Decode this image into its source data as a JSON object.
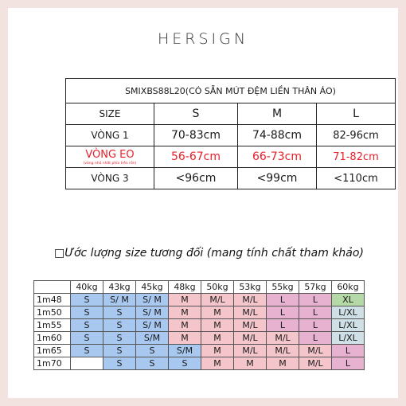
{
  "brand": "HERSIGN",
  "size_table": {
    "title": "SMIXBS88L20(CÓ SẴN MÚT ĐỆM LIỀN THÂN ÁO)",
    "header": [
      "SIZE",
      "S",
      "M",
      "L"
    ],
    "rows": [
      {
        "label": "VÒNG 1",
        "values": [
          "70-83cm",
          "74-88cm",
          "82-96cm"
        ],
        "color": "#1a1a1a"
      },
      {
        "label": "VÒNG EO",
        "note": "(vòng nhỏ nhất phía trên rốn)",
        "values": [
          "56-67cm",
          "66-73cm",
          "71-82cm"
        ],
        "color": "#e8202a"
      },
      {
        "label": "VÒNG 3",
        "values": [
          "<96cm",
          "<99cm",
          "<110cm"
        ],
        "color": "#1a1a1a"
      }
    ]
  },
  "subtitle": "□Ước lượng size tương đối (mang tính chất tham khảo)",
  "weight_table": {
    "weights": [
      "40kg",
      "43kg",
      "45kg",
      "48kg",
      "50kg",
      "53kg",
      "55kg",
      "57kg",
      "60kg"
    ],
    "rows": [
      {
        "height": "1m48",
        "cells": [
          "S",
          "S/ M",
          "S/ M",
          "M",
          "M/L",
          "M/L",
          "L",
          "L",
          "XL"
        ],
        "colors": [
          "blue",
          "blue",
          "blue",
          "pink",
          "pink",
          "pink",
          "mauve",
          "mauve",
          "green"
        ]
      },
      {
        "height": "1m50",
        "cells": [
          "S",
          "S",
          "S/ M",
          "M",
          "M",
          "M/L",
          "L",
          "L",
          "L/XL"
        ],
        "colors": [
          "blue",
          "blue",
          "blue",
          "pink",
          "pink",
          "pink",
          "mauve",
          "mauve",
          "teal"
        ]
      },
      {
        "height": "1m55",
        "cells": [
          "S",
          "S",
          "S/ M",
          "M",
          "M",
          "M/L",
          "L",
          "L",
          "L/XL"
        ],
        "colors": [
          "blue",
          "blue",
          "blue",
          "pink",
          "pink",
          "pink",
          "mauve",
          "mauve",
          "teal"
        ]
      },
      {
        "height": "1m60",
        "cells": [
          "S",
          "S",
          "S/M",
          "M",
          "M",
          "M/L",
          "M/L",
          "L",
          "L/XL"
        ],
        "colors": [
          "blue",
          "blue",
          "blue",
          "pink",
          "pink",
          "pink",
          "pink",
          "mauve",
          "teal"
        ]
      },
      {
        "height": "1m65",
        "cells": [
          "S",
          "S",
          "S",
          "S/M",
          "M",
          "M/L",
          "M/L",
          "M/L",
          "L"
        ],
        "colors": [
          "blue",
          "blue",
          "blue",
          "blue",
          "pink",
          "pink",
          "pink",
          "pink",
          "mauve"
        ]
      },
      {
        "height": "1m70",
        "cells": [
          "",
          "S",
          "S",
          "S",
          "M",
          "M",
          "M",
          "M/L",
          "L"
        ],
        "colors": [
          "white",
          "blue",
          "blue",
          "blue",
          "pink",
          "pink",
          "pink",
          "pink",
          "mauve"
        ]
      }
    ]
  }
}
